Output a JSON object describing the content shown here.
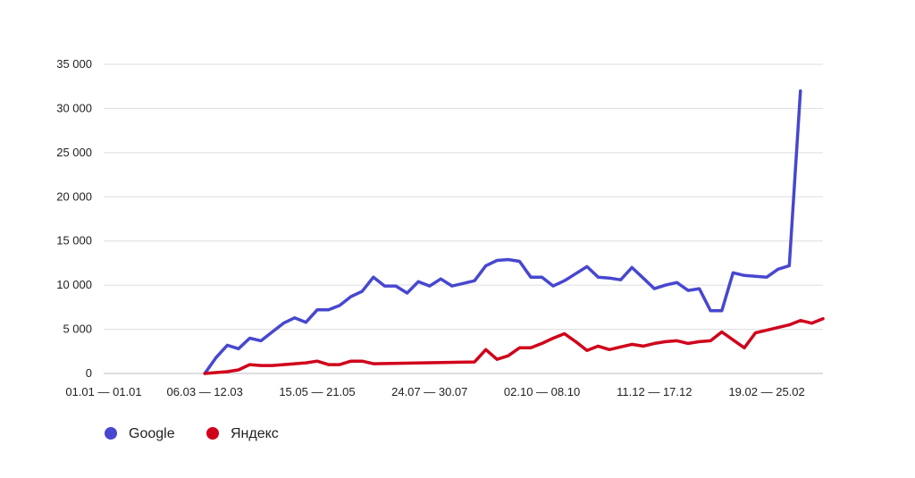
{
  "chart_data": {
    "type": "line",
    "ylim": [
      0,
      35000
    ],
    "y_ticks": [
      {
        "value": 0,
        "label": "0"
      },
      {
        "value": 5000,
        "label": "5 000"
      },
      {
        "value": 10000,
        "label": "10 000"
      },
      {
        "value": 15000,
        "label": "15 000"
      },
      {
        "value": 20000,
        "label": "20 000"
      },
      {
        "value": 25000,
        "label": "25 000"
      },
      {
        "value": 30000,
        "label": "30 000"
      },
      {
        "value": 35000,
        "label": "35 000"
      }
    ],
    "x_tick_labels": [
      {
        "index": 0,
        "label": "01.01 — 01.01"
      },
      {
        "index": 9,
        "label": "06.03 — 12.03"
      },
      {
        "index": 19,
        "label": "15.05 — 21.05"
      },
      {
        "index": 29,
        "label": "24.07 — 30.07"
      },
      {
        "index": 39,
        "label": "02.10 — 08.10"
      },
      {
        "index": 49,
        "label": "11.12 — 17.12"
      },
      {
        "index": 59,
        "label": "19.02 — 25.02"
      }
    ],
    "grid": true,
    "legend_position": "bottom-left",
    "series": [
      {
        "name": "Google",
        "color": "#4747cf",
        "points": [
          [
            9,
            0
          ],
          [
            10,
            1800
          ],
          [
            11,
            3200
          ],
          [
            12,
            2800
          ],
          [
            13,
            4000
          ],
          [
            14,
            3700
          ],
          [
            15,
            4700
          ],
          [
            16,
            5700
          ],
          [
            17,
            6300
          ],
          [
            18,
            5800
          ],
          [
            19,
            7200
          ],
          [
            20,
            7200
          ],
          [
            21,
            7700
          ],
          [
            22,
            8700
          ],
          [
            23,
            9300
          ],
          [
            24,
            10900
          ],
          [
            25,
            9900
          ],
          [
            26,
            9900
          ],
          [
            27,
            9100
          ],
          [
            28,
            10400
          ],
          [
            29,
            9900
          ],
          [
            30,
            10700
          ],
          [
            31,
            9900
          ],
          [
            32,
            10200
          ],
          [
            33,
            10500
          ],
          [
            34,
            12200
          ],
          [
            35,
            12800
          ],
          [
            36,
            12900
          ],
          [
            37,
            12700
          ],
          [
            38,
            10900
          ],
          [
            39,
            10900
          ],
          [
            40,
            9900
          ],
          [
            41,
            10500
          ],
          [
            42,
            11300
          ],
          [
            43,
            12100
          ],
          [
            44,
            10900
          ],
          [
            45,
            10800
          ],
          [
            46,
            10600
          ],
          [
            47,
            12000
          ],
          [
            48,
            10800
          ],
          [
            49,
            9600
          ],
          [
            50,
            10000
          ],
          [
            51,
            10300
          ],
          [
            52,
            9400
          ],
          [
            53,
            9600
          ],
          [
            54,
            7100
          ],
          [
            55,
            7100
          ],
          [
            56,
            11400
          ],
          [
            57,
            11100
          ],
          [
            58,
            11000
          ],
          [
            59,
            10900
          ],
          [
            60,
            11800
          ],
          [
            61,
            12200
          ],
          [
            62,
            32000
          ]
        ]
      },
      {
        "name": "Яндекс",
        "color": "#d0021b",
        "points": [
          [
            9,
            0
          ],
          [
            10,
            100
          ],
          [
            11,
            200
          ],
          [
            12,
            400
          ],
          [
            13,
            1000
          ],
          [
            14,
            900
          ],
          [
            15,
            900
          ],
          [
            16,
            1000
          ],
          [
            17,
            1100
          ],
          [
            18,
            1200
          ],
          [
            19,
            1400
          ],
          [
            20,
            1000
          ],
          [
            21,
            1000
          ],
          [
            22,
            1400
          ],
          [
            23,
            1400
          ],
          [
            24,
            1100
          ],
          [
            33,
            1300
          ],
          [
            34,
            2700
          ],
          [
            35,
            1600
          ],
          [
            36,
            2000
          ],
          [
            37,
            2900
          ],
          [
            38,
            2900
          ],
          [
            39,
            3400
          ],
          [
            40,
            4000
          ],
          [
            41,
            4500
          ],
          [
            42,
            3600
          ],
          [
            43,
            2600
          ],
          [
            44,
            3100
          ],
          [
            45,
            2700
          ],
          [
            46,
            3000
          ],
          [
            47,
            3300
          ],
          [
            48,
            3100
          ],
          [
            49,
            3400
          ],
          [
            50,
            3600
          ],
          [
            51,
            3700
          ],
          [
            52,
            3400
          ],
          [
            53,
            3600
          ],
          [
            54,
            3700
          ],
          [
            55,
            4700
          ],
          [
            56,
            3800
          ],
          [
            57,
            2900
          ],
          [
            58,
            4600
          ],
          [
            59,
            4900
          ],
          [
            60,
            5200
          ],
          [
            61,
            5500
          ],
          [
            62,
            6000
          ],
          [
            63,
            5700
          ],
          [
            64,
            6200
          ]
        ]
      }
    ]
  }
}
